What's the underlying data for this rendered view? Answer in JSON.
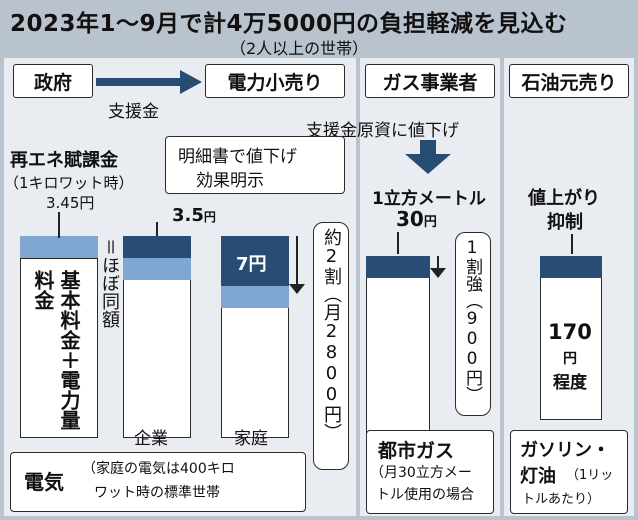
{
  "title": "2023年1～9月で計4万5000円の負担軽減を見込む",
  "subtitle": "（2人以上の世帯）",
  "flow": {
    "gov": "政府",
    "support": "支援金",
    "retail": "電力小売り",
    "gas_biz": "ガス事業者",
    "oil": "石油元売り",
    "funding": "支援金原資に値下げ"
  },
  "electricity": {
    "renew_label": "再エネ賦課金",
    "renew_note_l1": "（1キロワット時）",
    "renew_note_l2": "3.45円",
    "statement": "明細書で値下げ",
    "statement2": "効果明示",
    "base_text": "基本料金＋電力量料金",
    "equal": "＝ほぼ同額",
    "corp_val": "3.5",
    "unit_yen": "円",
    "home_val": "7円",
    "corp_label": "企業",
    "home_label": "家庭",
    "reduction": "約2割（月2800円）",
    "section": "電気",
    "note_l1": "（家庭の電気は400キロ",
    "note_l2": "ワット時の標準世帯"
  },
  "gas": {
    "head1": "1立方メートル",
    "val": "30",
    "unit": "円",
    "reduction": "1割強（900円）",
    "section": "都市ガス",
    "note_l1": "（月30立方メー",
    "note_l2": "トル使用の場合"
  },
  "oil": {
    "head1": "値上がり",
    "head2": "抑制",
    "val": "170",
    "unit": "円",
    "suffix": "程度",
    "section": "ガソリン・",
    "section2": "灯油",
    "note_l1": "（1リッ",
    "note_l2": "トルあたり）"
  },
  "colors": {
    "dark": "#284d74",
    "mid": "#7fa7d2",
    "bg": "#b9c3cd"
  }
}
